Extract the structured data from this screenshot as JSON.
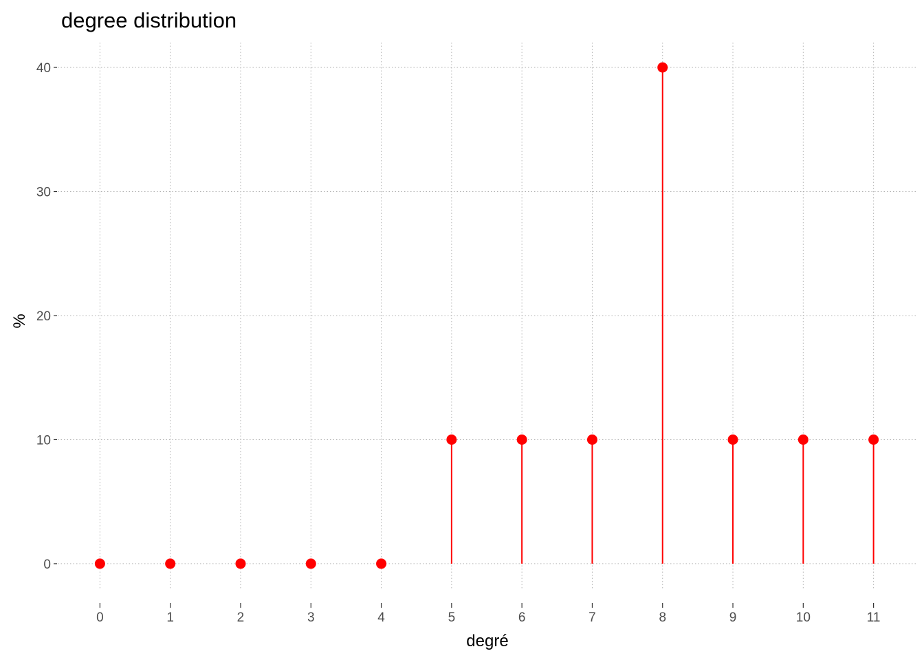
{
  "chart_data": {
    "type": "lollipop",
    "title": "degree distribution",
    "xlabel": "degré",
    "ylabel": "%",
    "x": [
      0,
      1,
      2,
      3,
      4,
      5,
      6,
      7,
      8,
      9,
      10,
      11
    ],
    "values": [
      0,
      0,
      0,
      0,
      0,
      10,
      10,
      10,
      40,
      10,
      10,
      10
    ],
    "x_ticks": [
      "0",
      "1",
      "2",
      "3",
      "4",
      "5",
      "6",
      "7",
      "8",
      "9",
      "10",
      "11"
    ],
    "y_ticks": [
      0,
      10,
      20,
      30,
      40
    ],
    "xlim": [
      -0.6,
      11.6
    ],
    "ylim": [
      -2,
      42
    ],
    "grid": "dotted",
    "legend": "none",
    "colors": {
      "series": "#ff0000",
      "grid": "#b3b3b3",
      "tick_text": "#4d4d4d",
      "background": "#ffffff"
    }
  }
}
